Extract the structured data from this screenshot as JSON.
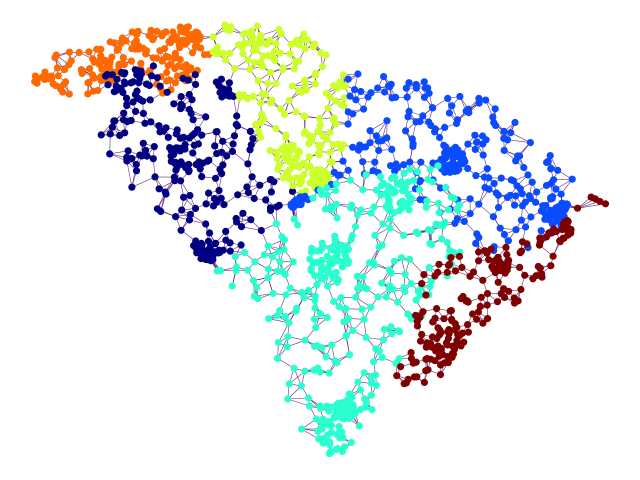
{
  "figure": {
    "kind": "graph-partition-map",
    "edge_color": "#4b0a5e",
    "background": "#ffffff"
  },
  "districts": [
    {
      "id": "northwest-tip",
      "color": "#ff6a00",
      "approx_node_count": 190
    },
    {
      "id": "upstate-west",
      "color": "#000080",
      "approx_node_count": 260
    },
    {
      "id": "upstate-center",
      "color": "#ccff2b",
      "approx_node_count": 230
    },
    {
      "id": "northeast",
      "color": "#0b4bff",
      "approx_node_count": 320
    },
    {
      "id": "midlands-south",
      "color": "#2affd0",
      "approx_node_count": 420
    },
    {
      "id": "coast-southeast",
      "color": "#7f0000",
      "approx_node_count": 210
    }
  ]
}
